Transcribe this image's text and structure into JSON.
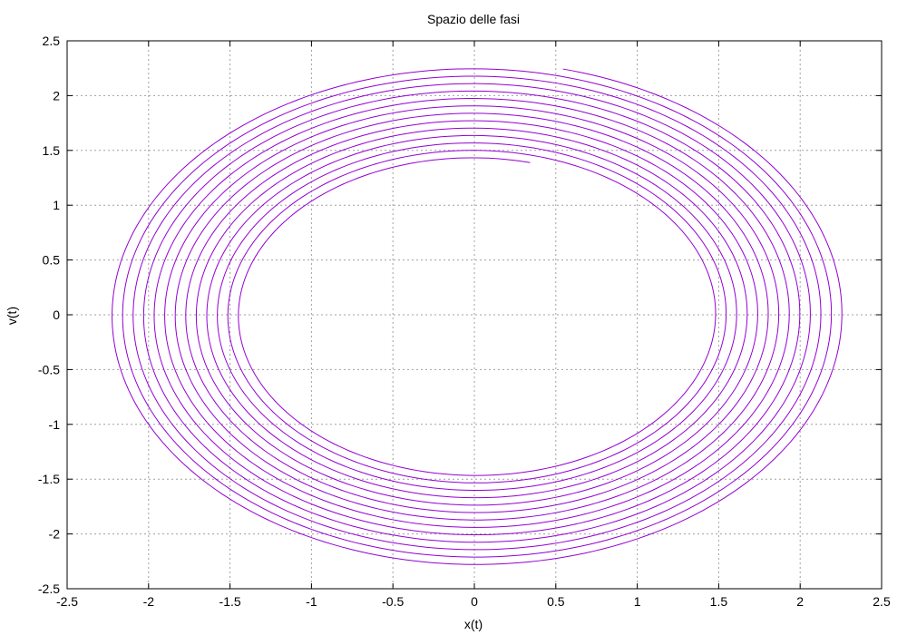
{
  "chart_data": {
    "type": "line",
    "title": "Spazio delle fasi",
    "xlabel": "x(t)",
    "ylabel": "v(t)",
    "xlim": [
      -2.5,
      2.5
    ],
    "ylim": [
      -2.5,
      2.5
    ],
    "x_ticks": [
      "-2.5",
      "-2",
      "-1.5",
      "-1",
      "-0.5",
      "0",
      "0.5",
      "1",
      "1.5",
      "2",
      "2.5"
    ],
    "y_ticks": [
      "-2.5",
      "-2",
      "-1.5",
      "-1",
      "-0.5",
      "0",
      "0.5",
      "1",
      "1.5",
      "2",
      "2.5"
    ],
    "grid": true,
    "series": [
      {
        "color": "#9400d3",
        "trajectory": {
          "shape": "outward spiral (closed-orbit rings)",
          "turns": 13,
          "start_point": [
            0.55,
            2.27
          ],
          "x_amplitude_range": [
            1.43,
            2.27
          ],
          "v_amplitude_range": [
            1.43,
            2.31
          ],
          "rings_x_at_v0": [
            1.43,
            1.5,
            1.57,
            1.64,
            1.71,
            1.78,
            1.85,
            1.92,
            1.99,
            2.06,
            2.13,
            2.2,
            2.27
          ]
        }
      }
    ]
  }
}
